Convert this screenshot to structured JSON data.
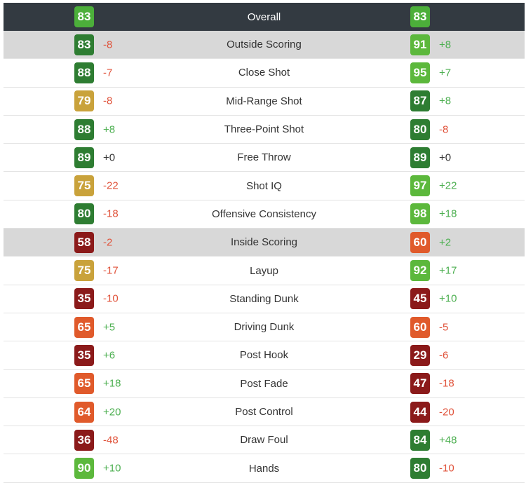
{
  "header": {
    "label": "Overall",
    "left_rating": "83",
    "right_rating": "83",
    "left_color": "#4caf3a",
    "right_color": "#4caf3a"
  },
  "colors": {
    "header_bg": "#333a41",
    "section_bg": "#d8d8d8",
    "positive": "#4caf50",
    "negative": "#e0533b",
    "neutral": "#333333"
  },
  "rows": [
    {
      "label": "Outside Scoring",
      "section": true,
      "left": {
        "rating": "83",
        "diff": "-8",
        "color": "#2e7d32",
        "diff_color": "#e0533b"
      },
      "right": {
        "rating": "91",
        "diff": "+8",
        "color": "#5cb83c",
        "diff_color": "#4caf50"
      }
    },
    {
      "label": "Close Shot",
      "section": false,
      "left": {
        "rating": "88",
        "diff": "-7",
        "color": "#2e7d32",
        "diff_color": "#e0533b"
      },
      "right": {
        "rating": "95",
        "diff": "+7",
        "color": "#5cb83c",
        "diff_color": "#4caf50"
      }
    },
    {
      "label": "Mid-Range Shot",
      "section": false,
      "left": {
        "rating": "79",
        "diff": "-8",
        "color": "#c9a23b",
        "diff_color": "#e0533b"
      },
      "right": {
        "rating": "87",
        "diff": "+8",
        "color": "#2e7d32",
        "diff_color": "#4caf50"
      }
    },
    {
      "label": "Three-Point Shot",
      "section": false,
      "left": {
        "rating": "88",
        "diff": "+8",
        "color": "#2e7d32",
        "diff_color": "#4caf50"
      },
      "right": {
        "rating": "80",
        "diff": "-8",
        "color": "#2e7d32",
        "diff_color": "#e0533b"
      }
    },
    {
      "label": "Free Throw",
      "section": false,
      "left": {
        "rating": "89",
        "diff": "+0",
        "color": "#2e7d32",
        "diff_color": "#333333"
      },
      "right": {
        "rating": "89",
        "diff": "+0",
        "color": "#2e7d32",
        "diff_color": "#333333"
      }
    },
    {
      "label": "Shot IQ",
      "section": false,
      "left": {
        "rating": "75",
        "diff": "-22",
        "color": "#c9a23b",
        "diff_color": "#e0533b"
      },
      "right": {
        "rating": "97",
        "diff": "+22",
        "color": "#5cb83c",
        "diff_color": "#4caf50"
      }
    },
    {
      "label": "Offensive Consistency",
      "section": false,
      "left": {
        "rating": "80",
        "diff": "-18",
        "color": "#2e7d32",
        "diff_color": "#e0533b"
      },
      "right": {
        "rating": "98",
        "diff": "+18",
        "color": "#5cb83c",
        "diff_color": "#4caf50"
      }
    },
    {
      "label": "Inside Scoring",
      "section": true,
      "left": {
        "rating": "58",
        "diff": "-2",
        "color": "#8b1a1a",
        "diff_color": "#e0533b"
      },
      "right": {
        "rating": "60",
        "diff": "+2",
        "color": "#e05a2b",
        "diff_color": "#4caf50"
      }
    },
    {
      "label": "Layup",
      "section": false,
      "left": {
        "rating": "75",
        "diff": "-17",
        "color": "#c9a23b",
        "diff_color": "#e0533b"
      },
      "right": {
        "rating": "92",
        "diff": "+17",
        "color": "#5cb83c",
        "diff_color": "#4caf50"
      }
    },
    {
      "label": "Standing Dunk",
      "section": false,
      "left": {
        "rating": "35",
        "diff": "-10",
        "color": "#8b1a1a",
        "diff_color": "#e0533b"
      },
      "right": {
        "rating": "45",
        "diff": "+10",
        "color": "#8b1a1a",
        "diff_color": "#4caf50"
      }
    },
    {
      "label": "Driving Dunk",
      "section": false,
      "left": {
        "rating": "65",
        "diff": "+5",
        "color": "#e05a2b",
        "diff_color": "#4caf50"
      },
      "right": {
        "rating": "60",
        "diff": "-5",
        "color": "#e05a2b",
        "diff_color": "#e0533b"
      }
    },
    {
      "label": "Post Hook",
      "section": false,
      "left": {
        "rating": "35",
        "diff": "+6",
        "color": "#8b1a1a",
        "diff_color": "#4caf50"
      },
      "right": {
        "rating": "29",
        "diff": "-6",
        "color": "#8b1a1a",
        "diff_color": "#e0533b"
      }
    },
    {
      "label": "Post Fade",
      "section": false,
      "left": {
        "rating": "65",
        "diff": "+18",
        "color": "#e05a2b",
        "diff_color": "#4caf50"
      },
      "right": {
        "rating": "47",
        "diff": "-18",
        "color": "#8b1a1a",
        "diff_color": "#e0533b"
      }
    },
    {
      "label": "Post Control",
      "section": false,
      "left": {
        "rating": "64",
        "diff": "+20",
        "color": "#e05a2b",
        "diff_color": "#4caf50"
      },
      "right": {
        "rating": "44",
        "diff": "-20",
        "color": "#8b1a1a",
        "diff_color": "#e0533b"
      }
    },
    {
      "label": "Draw Foul",
      "section": false,
      "left": {
        "rating": "36",
        "diff": "-48",
        "color": "#8b1a1a",
        "diff_color": "#e0533b"
      },
      "right": {
        "rating": "84",
        "diff": "+48",
        "color": "#2e7d32",
        "diff_color": "#4caf50"
      }
    },
    {
      "label": "Hands",
      "section": false,
      "left": {
        "rating": "90",
        "diff": "+10",
        "color": "#5cb83c",
        "diff_color": "#4caf50"
      },
      "right": {
        "rating": "80",
        "diff": "-10",
        "color": "#2e7d32",
        "diff_color": "#e0533b"
      }
    }
  ]
}
